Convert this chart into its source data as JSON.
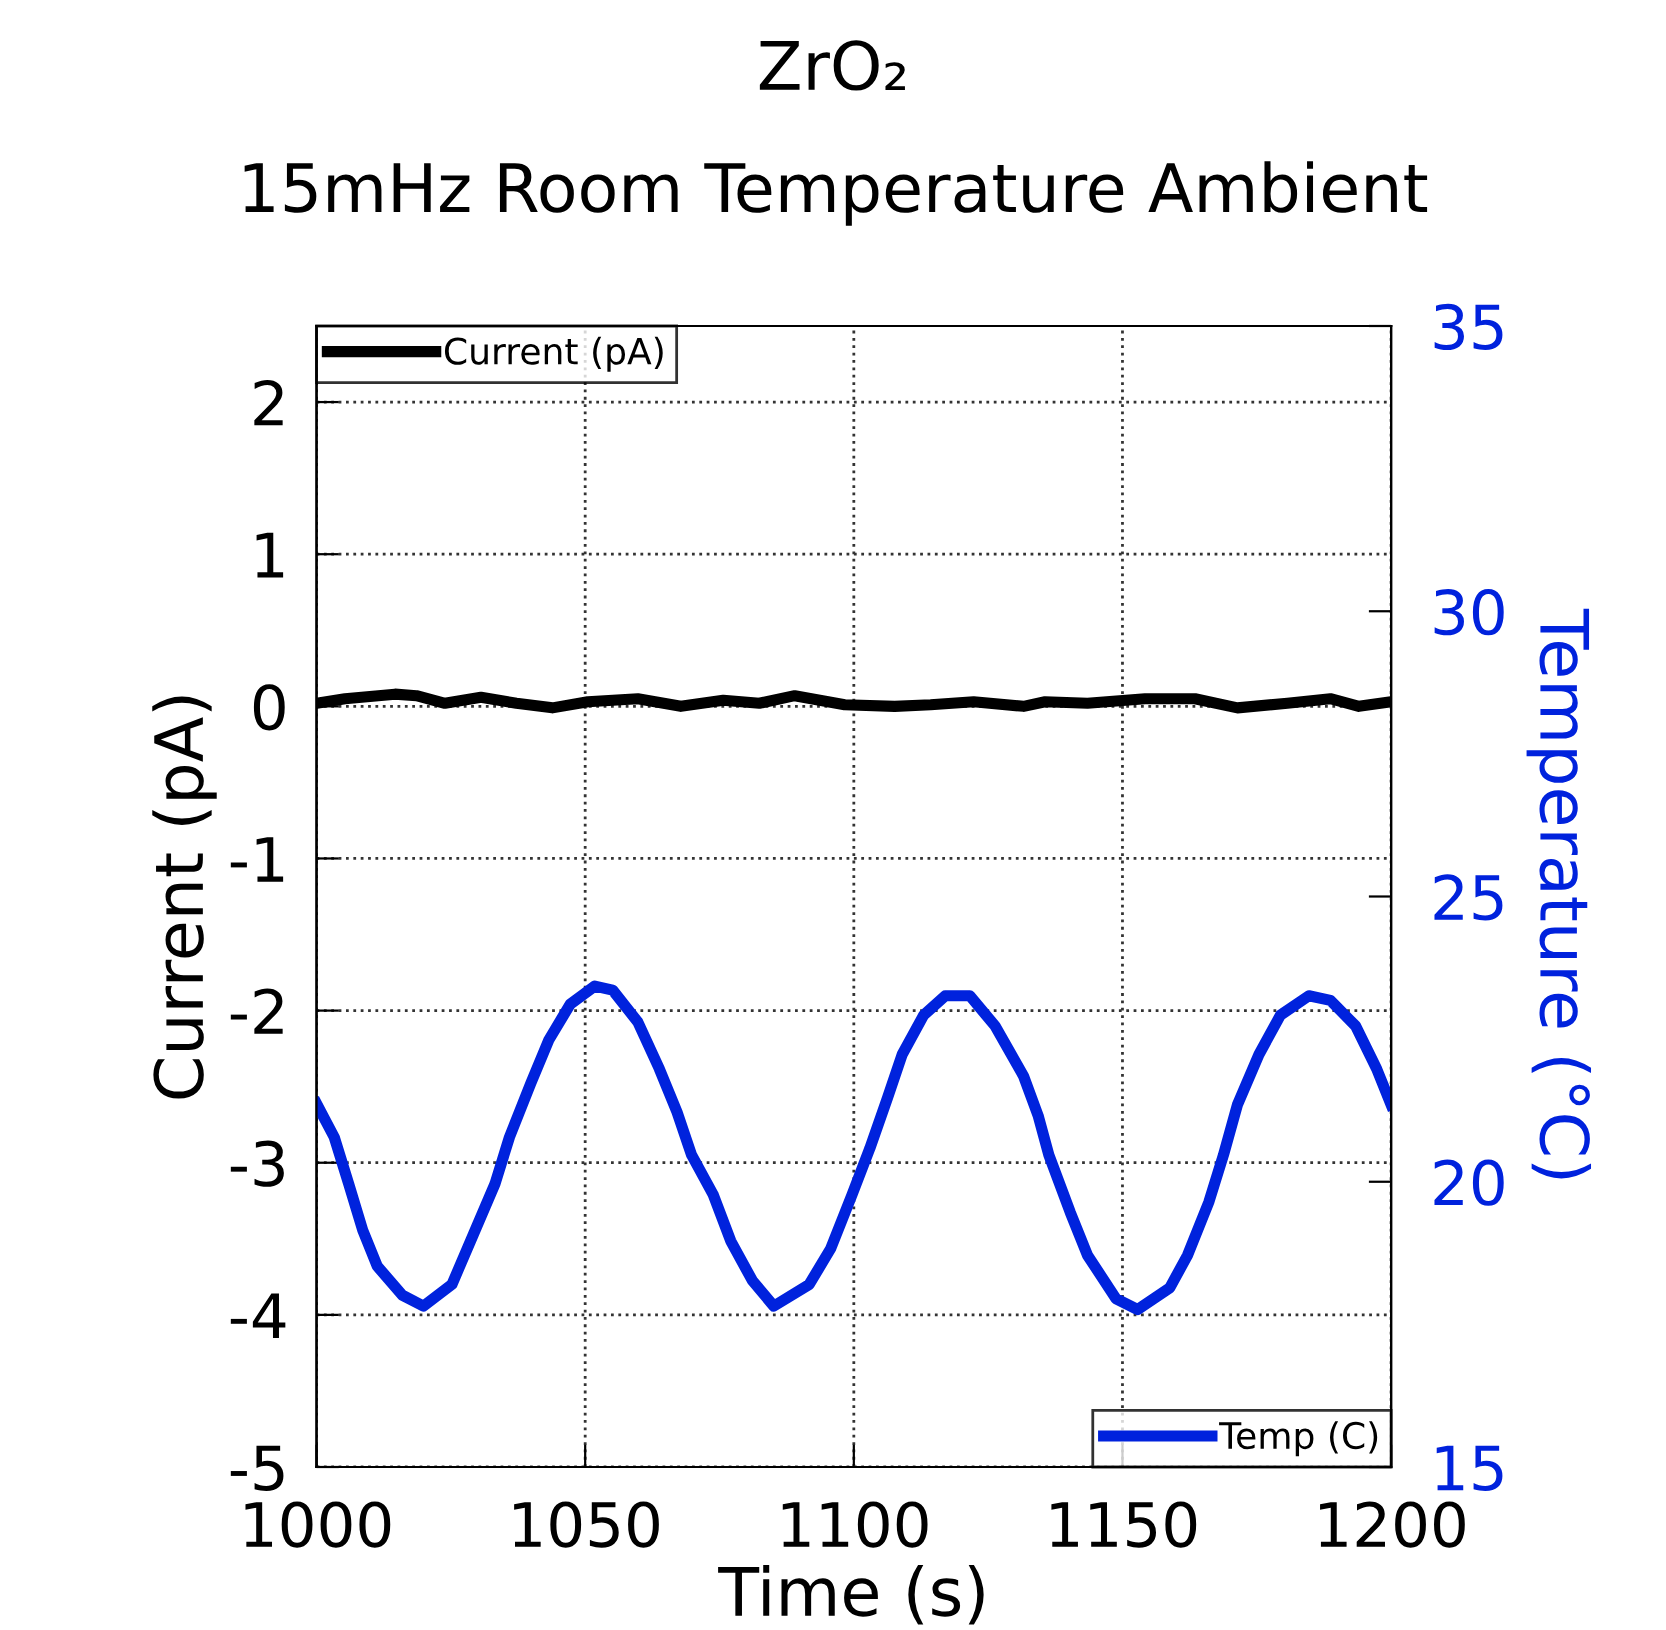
{
  "chart_data": {
    "type": "line",
    "title": "ZrO₂",
    "subtitle": "15mHz Room Temperature Ambient",
    "xlabel": "Time (s)",
    "ylabel": "Current (pA)",
    "y2label": "Temperature (°C)",
    "xlim": [
      1000,
      1200
    ],
    "xticks": [
      1000,
      1050,
      1100,
      1150,
      1200
    ],
    "ylim": [
      -5,
      2.5
    ],
    "yticks": [
      -5,
      -4,
      -3,
      -2,
      -1,
      0,
      1,
      2
    ],
    "y2lim": [
      15,
      35
    ],
    "y2ticks": [
      15,
      20,
      25,
      30,
      35
    ],
    "grid": true,
    "line_style": "solid",
    "marker": "none",
    "legend": "top left",
    "series": [
      {
        "name": "Current (pA)",
        "color": "#000000",
        "x": [
          1000,
          1005.3,
          1014.6,
          1018.6,
          1023.9,
          1030.6,
          1037.2,
          1043.9,
          1050.5,
          1059.8,
          1067.8,
          1075.7,
          1082.4,
          1089.0,
          1098.3,
          1107.6,
          1114.3,
          1122.3,
          1131.6,
          1135.6,
          1143.5,
          1154.2,
          1163.5,
          1171.4,
          1180.7,
          1188.7,
          1194.0,
          1200
        ],
        "values": [
          0.02,
          0.05,
          0.08,
          0.07,
          0.02,
          0.06,
          0.02,
          -0.01,
          0.03,
          0.05,
          0,
          0.04,
          0.02,
          0.07,
          0.01,
          0,
          0.01,
          0.03,
          0,
          0.03,
          0.02,
          0.05,
          0.05,
          -0.01,
          0.02,
          0.05,
          0,
          0.03
        ]
      },
      {
        "name": "Temp (C)",
        "color": "#0022dd",
        "axis": "y2",
        "x": [
          1000,
          1003.3,
          1006,
          1008.6,
          1011.3,
          1016,
          1019.9,
          1025.2,
          1029.2,
          1033.2,
          1035.9,
          1039.9,
          1043.2,
          1047.2,
          1051.8,
          1055.1,
          1059.8,
          1063.8,
          1067.1,
          1069.8,
          1073.8,
          1077.1,
          1081.1,
          1085.1,
          1091.7,
          1095.7,
          1099.7,
          1103.0,
          1106.3,
          1109.0,
          1113.0,
          1117.0,
          1121.6,
          1126.3,
          1131.6,
          1134.3,
          1136.3,
          1140.3,
          1143.5,
          1148.8,
          1152.8,
          1158.8,
          1162.1,
          1166.1,
          1168.8,
          1171.4,
          1175.4,
          1179.4,
          1184.7,
          1188.7,
          1193.4,
          1197.3,
          1200
        ],
        "values": [
          21.37,
          20.78,
          19.96,
          19.15,
          18.52,
          18.01,
          17.82,
          18.2,
          19.08,
          19.96,
          20.78,
          21.73,
          22.48,
          23.11,
          23.43,
          23.36,
          22.8,
          21.98,
          21.22,
          20.47,
          19.78,
          18.96,
          18.27,
          17.82,
          18.2,
          18.83,
          19.78,
          20.59,
          21.48,
          22.23,
          22.92,
          23.26,
          23.26,
          22.73,
          21.85,
          21.16,
          20.47,
          19.46,
          18.71,
          17.95,
          17.76,
          18.14,
          18.71,
          19.65,
          20.47,
          21.35,
          22.23,
          22.92,
          23.26,
          23.18,
          22.73,
          21.98,
          21.35
        ]
      }
    ]
  }
}
